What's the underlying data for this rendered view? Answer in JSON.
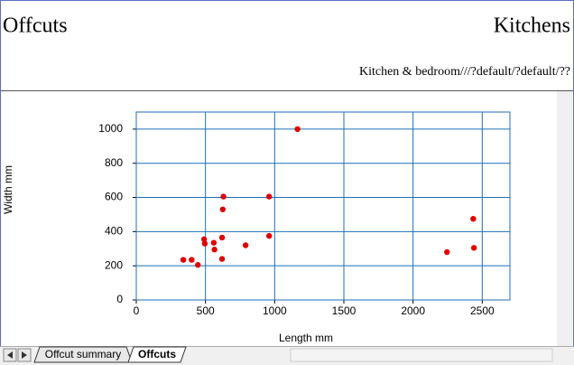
{
  "header": {
    "title": "Offcuts",
    "company": "Kitchens",
    "subtitle": "Kitchen & bedroom///?default/?default/??"
  },
  "tabs": [
    "Offcut summary",
    "Offcuts"
  ],
  "chart_data": {
    "type": "scatter",
    "x_label": "Length mm",
    "y_label": "Width mm",
    "x": [
      340,
      400,
      445,
      490,
      495,
      560,
      565,
      620,
      620,
      625,
      630,
      790,
      960,
      960,
      1165,
      2245,
      2435,
      2440
    ],
    "values": [
      235,
      235,
      205,
      355,
      330,
      335,
      295,
      240,
      365,
      530,
      605,
      320,
      605,
      375,
      1000,
      280,
      475,
      305
    ],
    "color": "#e00000",
    "grid": true,
    "grid_color": "#1e6fb8",
    "xlim": [
      0,
      2700
    ],
    "xticks": [
      0,
      500,
      1000,
      1500,
      2000,
      2500
    ],
    "ylim": [
      0,
      1100
    ],
    "yticks": [
      0,
      200,
      400,
      600,
      800,
      1000
    ]
  }
}
